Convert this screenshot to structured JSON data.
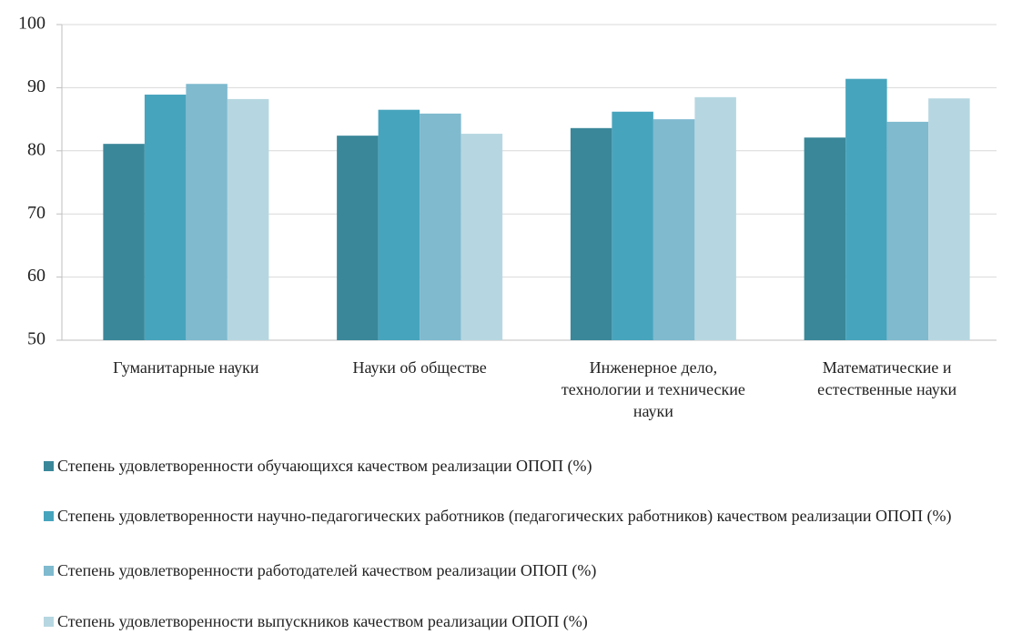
{
  "chart_data": {
    "type": "bar",
    "categories": [
      "Гуманитарные науки",
      "Науки об обществе",
      "Инженерное дело, технологии и технические науки",
      "Математические и естественные науки"
    ],
    "series": [
      {
        "name": "Степень удовлетворенности обучающихся качеством реализации ОПОП  (%)",
        "color": "#3a8799",
        "values": [
          81.1,
          82.4,
          83.6,
          82.1
        ]
      },
      {
        "name": "Степень удовлетворенности научно-педагогических работников (педагогических работников) качеством реализации ОПОП (%)",
        "color": "#47a4bd",
        "values": [
          88.9,
          86.5,
          86.2,
          91.4
        ]
      },
      {
        "name": "Степень удовлетворенности работодателей качеством реализации ОПОП (%)",
        "color": "#7fbacf",
        "values": [
          90.6,
          85.9,
          85.0,
          84.6
        ]
      },
      {
        "name": "Степень удовлетворенности выпускников качеством реализации ОПОП  (%)",
        "color": "#b6d7e1",
        "values": [
          88.2,
          82.7,
          88.5,
          88.3
        ]
      }
    ],
    "ylim": [
      50,
      100
    ],
    "yticks": [
      50,
      60,
      70,
      80,
      90,
      100
    ],
    "grid": true,
    "legend": "bottom"
  }
}
